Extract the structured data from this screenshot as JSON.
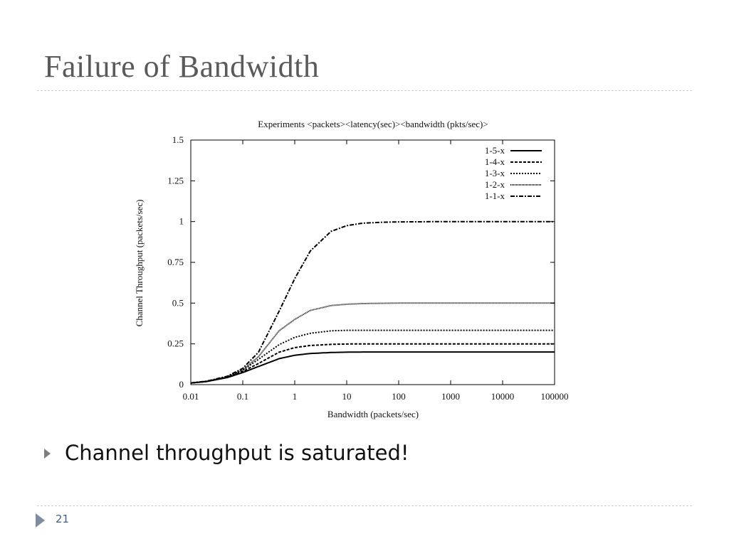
{
  "slide": {
    "title": "Failure of Bandwidth",
    "bullet": "Channel throughput is saturated!",
    "page_number": "21"
  },
  "chart_data": {
    "type": "line",
    "title": "Experiments <packets><latency(sec)><bandwidth (pkts/sec)>",
    "xlabel": "Bandwidth (packets/sec)",
    "ylabel": "Channel Throughput (packets/sec)",
    "x_scale": "log",
    "xlim": [
      0.01,
      100000
    ],
    "ylim": [
      0,
      1.5
    ],
    "x_ticks": [
      "0.01",
      "0.1",
      "1",
      "10",
      "100",
      "1000",
      "10000",
      "100000"
    ],
    "y_ticks": [
      "0",
      "0.25",
      "0.5",
      "0.75",
      "1",
      "1.25",
      "1.5"
    ],
    "grid": false,
    "legend_position": "top-right",
    "x": [
      0.01,
      0.02,
      0.05,
      0.1,
      0.2,
      0.5,
      1,
      2,
      5,
      10,
      20,
      50,
      100,
      1000,
      10000,
      100000
    ],
    "series": [
      {
        "name": "1-5-x",
        "style": "solid",
        "values": [
          0.01,
          0.019,
          0.043,
          0.074,
          0.111,
          0.159,
          0.18,
          0.191,
          0.197,
          0.199,
          0.2,
          0.2,
          0.2,
          0.2,
          0.2,
          0.2
        ]
      },
      {
        "name": "1-4-x",
        "style": "dashed",
        "values": [
          0.01,
          0.019,
          0.045,
          0.081,
          0.129,
          0.199,
          0.227,
          0.24,
          0.247,
          0.249,
          0.25,
          0.25,
          0.25,
          0.25,
          0.25,
          0.25
        ]
      },
      {
        "name": "1-3-x",
        "style": "dotted",
        "values": [
          0.01,
          0.019,
          0.047,
          0.088,
          0.155,
          0.245,
          0.29,
          0.315,
          0.33,
          0.333,
          0.333,
          0.333,
          0.333,
          0.333,
          0.333,
          0.333
        ]
      },
      {
        "name": "1-2-x",
        "style": "fine-dotted",
        "values": [
          0.01,
          0.02,
          0.049,
          0.091,
          0.171,
          0.33,
          0.4,
          0.455,
          0.485,
          0.493,
          0.497,
          0.499,
          0.5,
          0.5,
          0.5,
          0.5
        ]
      },
      {
        "name": "1-1-x",
        "style": "dash-dot",
        "values": [
          0.01,
          0.021,
          0.051,
          0.1,
          0.198,
          0.45,
          0.65,
          0.82,
          0.94,
          0.975,
          0.99,
          0.996,
          0.998,
          1.0,
          1.0,
          1.0
        ]
      }
    ]
  }
}
